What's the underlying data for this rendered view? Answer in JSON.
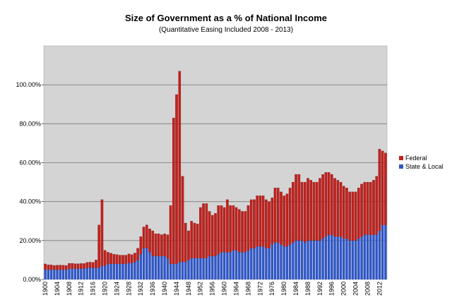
{
  "chart_data": {
    "type": "bar",
    "stacked": true,
    "title": "Size of Government as a % of National Income",
    "subtitle": "(Quantitative Easing Included 2008 - 2013)",
    "xlabel": "",
    "ylabel": "",
    "ylim": [
      0,
      120
    ],
    "yticks": [
      "0.00%",
      "20.00%",
      "40.00%",
      "60.00%",
      "80.00%",
      "100.00%"
    ],
    "ytick_values": [
      0,
      20,
      40,
      60,
      80,
      100
    ],
    "grid": true,
    "legend_position": "right",
    "x_start": 1900,
    "x_end": 2014,
    "xticks": [
      "1900",
      "1904",
      "1908",
      "1912",
      "1916",
      "1920",
      "1924",
      "1928",
      "1932",
      "1936",
      "1940",
      "1944",
      "1948",
      "1952",
      "1956",
      "1960",
      "1964",
      "1968",
      "1972",
      "1976",
      "1980",
      "1984",
      "1988",
      "1992",
      "1996",
      "2000",
      "2004",
      "2008",
      "2012"
    ],
    "series": [
      {
        "name": "Federal",
        "color": "#c4201c",
        "values": [
          3,
          2.5,
          2.5,
          2.2,
          2.3,
          2.4,
          2.3,
          2.2,
          2.8,
          2.8,
          2.6,
          2.6,
          2.7,
          2.7,
          2.8,
          2.9,
          2.8,
          4,
          22,
          34,
          8,
          6,
          5.5,
          5,
          4.8,
          4.5,
          4.5,
          4.5,
          4.6,
          4.3,
          4.6,
          6,
          9,
          11,
          12,
          12,
          13,
          11.5,
          11.5,
          11,
          11.5,
          12,
          30,
          75,
          87,
          98,
          44,
          20,
          15,
          19,
          18,
          17.5,
          26,
          28,
          28,
          23,
          21,
          22,
          25,
          24,
          23,
          27,
          24,
          23,
          22,
          22,
          21,
          21,
          23,
          25,
          25,
          26,
          26,
          26,
          25,
          24,
          24,
          28,
          28,
          27,
          26,
          27,
          29,
          31,
          34,
          34,
          30,
          31,
          32,
          31,
          30,
          30,
          32,
          33,
          33,
          32,
          31,
          30,
          29,
          28,
          27,
          26,
          25,
          25,
          25,
          26,
          27,
          27,
          27,
          27,
          28,
          30,
          42,
          38,
          37,
          36,
          35,
          32,
          32,
          32
        ]
      },
      {
        "name": "State & Local",
        "color": "#2e56c8",
        "values": [
          5,
          5,
          5,
          5,
          5,
          5,
          5,
          5,
          5.5,
          5.5,
          5.5,
          5.5,
          5.5,
          5.5,
          6,
          6,
          6,
          6,
          6,
          7,
          7,
          8,
          8,
          8,
          8,
          8,
          8,
          8,
          8.5,
          8.5,
          9,
          10,
          13,
          16,
          16,
          14,
          12,
          12,
          12,
          12,
          12,
          11,
          8,
          8,
          8,
          9,
          9,
          9,
          10,
          11,
          11,
          11,
          11,
          11,
          11,
          12,
          12,
          12,
          13,
          14,
          14,
          14,
          14,
          15,
          15,
          14,
          14,
          14,
          15,
          16,
          16,
          17,
          17,
          17,
          16,
          16,
          18,
          19,
          19,
          18,
          17,
          17,
          18,
          19,
          20,
          20,
          20,
          19,
          20,
          20,
          20,
          20,
          20,
          21,
          22,
          23,
          23,
          22,
          22,
          22,
          21,
          21,
          20,
          20,
          20,
          21,
          22,
          23,
          23,
          23,
          23,
          23,
          25,
          28,
          28,
          28,
          27,
          26,
          25,
          24
        ]
      }
    ]
  }
}
